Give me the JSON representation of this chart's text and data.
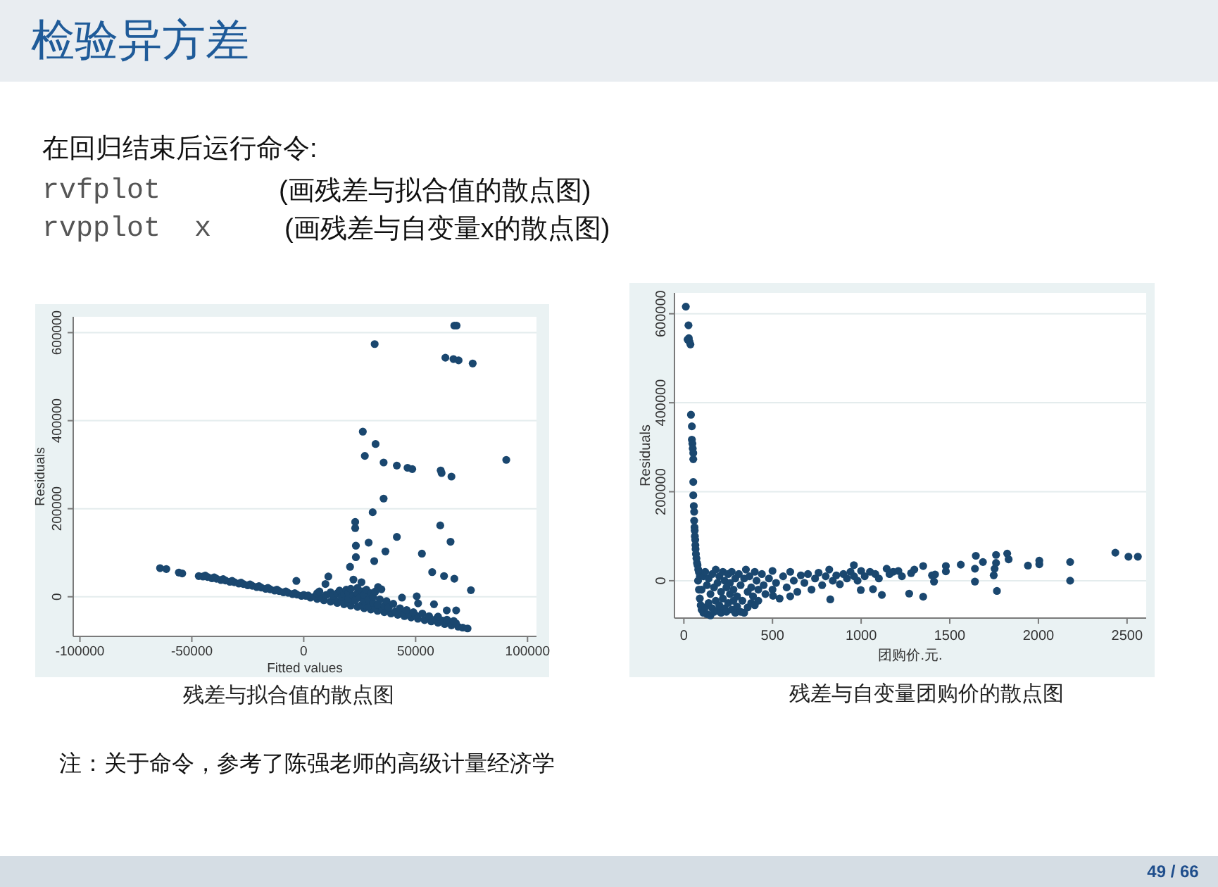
{
  "chart_data": [
    {
      "type": "other",
      "title": "检验异方差",
      "annotations": [
        "在回归结束后运行命令:",
        "rvfplot",
        "(画残差与拟合值的散点图)",
        "rvpplot  x",
        "(画残差与自变量x的散点图)",
        "注：关于命令，参考了陈强老师的高级计量经济学",
        "49 / 66"
      ]
    },
    {
      "type": "scatter",
      "xlabel": "Fitted values",
      "ylabel": "Residuals",
      "annotations": [
        "残差与拟合值的散点图"
      ],
      "color": "#1a476f",
      "marker": "circle",
      "grid": "y",
      "xlim": [
        -103000,
        104000
      ],
      "ylim": [
        -90000,
        636000
      ],
      "xticks": [
        -100000,
        -50000,
        0,
        50000,
        100000
      ],
      "yticks": [
        0,
        200000,
        400000,
        600000
      ],
      "x": [
        31700,
        67300,
        68300,
        63300,
        66900,
        69200,
        75500,
        26400,
        32100,
        27300,
        35700,
        41600,
        46400,
        48500,
        90500,
        61200,
        61600,
        66000,
        35700,
        30800,
        23000,
        23000,
        61000,
        23300,
        29000,
        41600,
        65600,
        52800,
        36500,
        23300,
        31500,
        20700,
        57400,
        62700,
        67300,
        -3300,
        11000,
        9700,
        22200,
        25800,
        33200,
        34700,
        74700,
        43900,
        50500,
        51100,
        58200,
        63900,
        68100,
        -64200,
        -61400,
        -55800,
        -54300,
        -46900,
        -45000,
        -43000,
        -41000,
        -39000,
        -37000,
        -35000,
        -33000,
        -31000,
        -29000,
        -27000,
        -25000,
        -23000,
        -21000,
        -19000,
        -17000,
        -15000,
        -13000,
        -11000,
        -9000,
        -7000,
        -5000,
        -3000,
        -1000,
        1000,
        -44000,
        -40000,
        -36000,
        -32000,
        -28000,
        -24000,
        -20000,
        -16000,
        -12000,
        -8000,
        -4000,
        0,
        3000,
        6000,
        9000,
        12000,
        15000,
        18000,
        21000,
        24000,
        27000,
        30000,
        33000,
        36000,
        39000,
        42000,
        45000,
        48000,
        51000,
        54000,
        57000,
        60000,
        63000,
        66000,
        69000,
        71000,
        73200,
        2000,
        5000,
        8000,
        14000,
        17000,
        20000,
        26000,
        29000,
        32000,
        35000,
        41000,
        44000,
        47000,
        50000,
        59000,
        62000,
        68000,
        6000,
        7000,
        10000,
        12000,
        13000,
        15000,
        16000,
        17000,
        18000,
        19000,
        20000,
        20000,
        21000,
        22000,
        23000,
        24000,
        24000,
        25000,
        26000,
        27000,
        27000,
        28000,
        29000,
        30000,
        31000,
        31000,
        32000,
        33000,
        34000,
        36000,
        37000,
        38000,
        40000,
        43000,
        46000,
        49000,
        53000,
        56000,
        60000,
        64000,
        67000
      ],
      "values": [
        574000,
        616000,
        616000,
        543000,
        540000,
        537000,
        530000,
        375000,
        347000,
        320000,
        305000,
        298000,
        293000,
        290000,
        311000,
        287000,
        281000,
        273000,
        223000,
        192000,
        170000,
        156000,
        162000,
        116000,
        123000,
        136000,
        125000,
        98000,
        103000,
        90000,
        81000,
        68000,
        56000,
        47000,
        41000,
        36000,
        46000,
        29000,
        39000,
        33000,
        22000,
        17000,
        15000,
        -2000,
        1000,
        -15000,
        -17000,
        -31000,
        -31000,
        65000,
        63000,
        55000,
        53000,
        47000,
        46000,
        45000,
        42000,
        41000,
        38000,
        37000,
        34000,
        33000,
        30000,
        29000,
        26000,
        25000,
        22000,
        21000,
        18000,
        17000,
        14000,
        13000,
        10000,
        9000,
        6000,
        5000,
        2000,
        2000,
        48000,
        44000,
        40000,
        36000,
        32000,
        28000,
        24000,
        20000,
        16000,
        12000,
        8000,
        4000,
        -2000,
        -5000,
        -8000,
        -11000,
        -14000,
        -17000,
        -20000,
        -23000,
        -26000,
        -29000,
        -32000,
        -35000,
        -38000,
        -41000,
        -44000,
        -47000,
        -50000,
        -53000,
        -56000,
        -59000,
        -62000,
        -65000,
        -68000,
        -70000,
        -72000,
        3000,
        1000,
        -2000,
        -7000,
        -10000,
        -12000,
        -18000,
        -21000,
        -24000,
        -27000,
        -33000,
        -36000,
        -39000,
        -42000,
        -51000,
        -54000,
        -60000,
        8000,
        12000,
        4000,
        10000,
        2000,
        8000,
        14000,
        0,
        6000,
        16000,
        -4000,
        10000,
        18000,
        2000,
        -8000,
        8000,
        20000,
        -2000,
        12000,
        -10000,
        4000,
        16000,
        -6000,
        8000,
        -14000,
        0,
        12000,
        -18000,
        -6000,
        -20000,
        -10000,
        -24000,
        -16000,
        -26000,
        -30000,
        -35000,
        -38000,
        -44000,
        -45000,
        -52000,
        -55000
      ]
    },
    {
      "type": "scatter",
      "xlabel": "团购价.元.",
      "ylabel": "Residuals",
      "annotations": [
        "残差与自变量团购价的散点图"
      ],
      "color": "#1a476f",
      "marker": "circle",
      "grid": "y",
      "xlim": [
        -53,
        2608
      ],
      "ylim": [
        -84000,
        647000
      ],
      "xticks": [
        0,
        500,
        1000,
        1500,
        2000,
        2500
      ],
      "yticks": [
        0,
        200000,
        400000,
        600000
      ],
      "x": [
        11,
        26,
        21,
        32,
        37,
        28,
        40,
        45,
        45,
        48,
        50,
        53,
        53,
        53,
        53,
        56,
        58,
        58,
        60,
        61,
        62,
        64,
        65,
        66,
        68,
        71,
        74,
        77,
        81,
        85,
        90,
        80,
        85,
        90,
        95,
        100,
        110,
        120,
        130,
        140,
        150,
        160,
        170,
        180,
        190,
        200,
        210,
        220,
        230,
        240,
        250,
        260,
        270,
        280,
        290,
        300,
        320,
        340,
        360,
        380,
        400,
        420,
        100,
        110,
        120,
        130,
        140,
        150,
        160,
        170,
        180,
        190,
        200,
        210,
        220,
        230,
        240,
        250,
        260,
        270,
        280,
        290,
        300,
        310,
        320,
        330,
        340,
        350,
        360,
        370,
        380,
        390,
        400,
        410,
        420,
        440,
        450,
        460,
        480,
        500,
        500,
        520,
        540,
        560,
        580,
        600,
        600,
        620,
        640,
        660,
        680,
        700,
        720,
        740,
        760,
        780,
        800,
        820,
        840,
        860,
        880,
        900,
        920,
        940,
        960,
        980,
        503,
        826,
        1000,
        1020,
        1050,
        1080,
        1100,
        998,
        1067,
        1117,
        1144,
        1160,
        1180,
        1210,
        1230,
        1271,
        1282,
        1300,
        1350,
        1350,
        1400,
        1411,
        1417,
        1478,
        1478,
        1562,
        1642,
        1642,
        1647,
        1687,
        1748,
        1753,
        1761,
        1761,
        1766,
        1824,
        1832,
        1941,
        2005,
        2005,
        2179,
        2179,
        2434,
        2508,
        2561,
        959
      ],
      "values": [
        616000,
        574000,
        542000,
        537000,
        531000,
        545000,
        373000,
        347000,
        317000,
        308000,
        297000,
        287000,
        273000,
        222000,
        192000,
        168000,
        155000,
        135000,
        120000,
        113000,
        100000,
        92000,
        80000,
        71000,
        60000,
        50000,
        40000,
        35000,
        25000,
        19000,
        10000,
        0,
        -20000,
        -40000,
        -55000,
        -65000,
        -72000,
        -60000,
        -75000,
        -50000,
        -78000,
        -62000,
        -70000,
        -45000,
        -68000,
        -55000,
        -72000,
        -40000,
        -62000,
        -70000,
        -50000,
        -30000,
        -65000,
        -45000,
        -72000,
        -58000,
        -70000,
        -72000,
        -60000,
        -50000,
        -55000,
        -45000,
        -20000,
        10000,
        20000,
        -10000,
        5000,
        -30000,
        15000,
        -15000,
        25000,
        -5000,
        10000,
        -25000,
        20000,
        0,
        -15000,
        15000,
        -5000,
        20000,
        -20000,
        5000,
        -35000,
        15000,
        -10000,
        -45000,
        5000,
        25000,
        -25000,
        10000,
        -15000,
        -35000,
        20000,
        0,
        -20000,
        15000,
        -10000,
        -30000,
        5000,
        -20000,
        22000,
        -5000,
        -40000,
        10000,
        -15000,
        -35000,
        20000,
        0,
        -25000,
        12000,
        -5000,
        15000,
        -20000,
        5000,
        18000,
        -10000,
        10000,
        25000,
        0,
        12000,
        -8000,
        15000,
        5000,
        20000,
        10000,
        0,
        -34000,
        -42000,
        22000,
        10000,
        20000,
        15000,
        5000,
        -21000,
        -19000,
        -32000,
        27000,
        15000,
        20000,
        22000,
        10000,
        -29000,
        17000,
        25000,
        33000,
        -36000,
        12000,
        -2000,
        14000,
        33000,
        21000,
        36000,
        27000,
        -2000,
        56000,
        42000,
        12000,
        27000,
        40000,
        58000,
        -23000,
        61000,
        48000,
        34000,
        37000,
        45000,
        42000,
        0,
        63000,
        54000,
        54000,
        35000
      ]
    }
  ]
}
